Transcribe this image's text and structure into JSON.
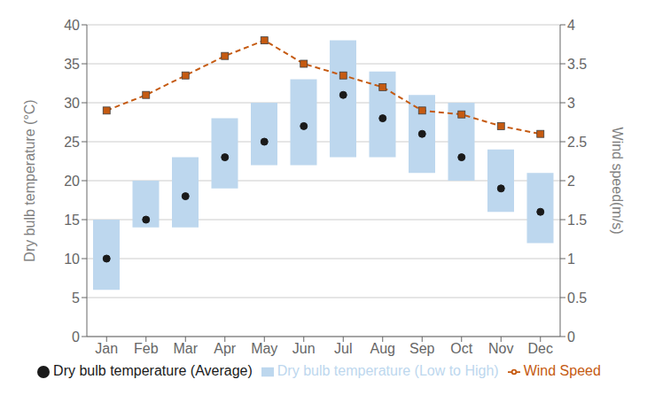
{
  "chart_data": {
    "type": "bar",
    "categories": [
      "Jan",
      "Feb",
      "Mar",
      "Apr",
      "May",
      "Jun",
      "Jul",
      "Aug",
      "Sep",
      "Oct",
      "Nov",
      "Dec"
    ],
    "ylabel": "Dry bulb temperature (°C)",
    "y2label": "Wind speed(m/s)",
    "ylim": [
      0,
      40
    ],
    "yticks": [
      0,
      5,
      10,
      15,
      20,
      25,
      30,
      35,
      40
    ],
    "y2lim": [
      0,
      4
    ],
    "y2ticks": [
      0,
      0.5,
      1,
      1.5,
      2,
      2.5,
      3,
      3.5,
      4
    ],
    "grid": true,
    "legend": "bottom",
    "series": [
      {
        "name": "Dry bulb temperature (Low to High)",
        "type": "bar",
        "color": "#bdd7ee",
        "values": [
          [
            6,
            15
          ],
          [
            14,
            20
          ],
          [
            14,
            23
          ],
          [
            19,
            28
          ],
          [
            22,
            30
          ],
          [
            22,
            33
          ],
          [
            23,
            38
          ],
          [
            23,
            34
          ],
          [
            21,
            31
          ],
          [
            20,
            30
          ],
          [
            16,
            24
          ],
          [
            12,
            21
          ]
        ]
      },
      {
        "name": "Dry bulb temperature (Average)",
        "type": "scatter",
        "color": "#1a1a1a",
        "marker": "circle",
        "values": [
          10,
          15,
          18,
          23,
          25,
          27,
          31,
          28,
          26,
          23,
          19,
          16
        ]
      },
      {
        "name": "Wind Speed",
        "type": "line",
        "axis": "y2",
        "color": "#c55a11",
        "line_style": "dashed",
        "marker": "square",
        "values": [
          2.9,
          3.1,
          3.35,
          3.6,
          3.8,
          3.5,
          3.35,
          3.2,
          2.9,
          2.85,
          2.7,
          2.6
        ]
      }
    ]
  }
}
